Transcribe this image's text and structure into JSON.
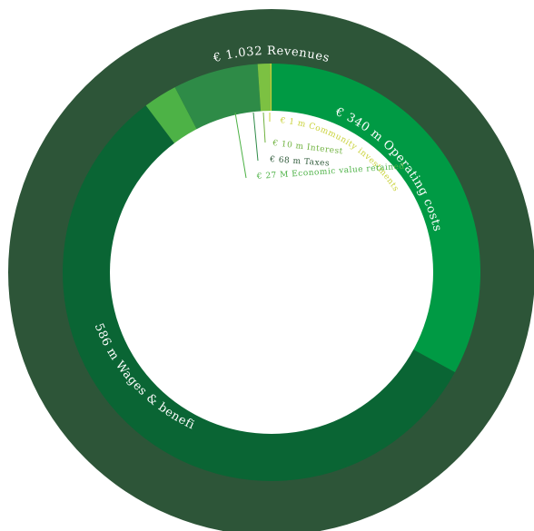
{
  "chart_data": {
    "type": "pie",
    "title": "",
    "total": {
      "label": "€ 1.032 Revenues",
      "value": 1032,
      "unit": "€ m"
    },
    "segments": [
      {
        "key": "operating",
        "label": "€ 340 m Operating costs",
        "value": 340,
        "color": "#009a44"
      },
      {
        "key": "wages",
        "label": "€ 586 m Wages & benefits",
        "value": 586,
        "color": "#0a6534"
      },
      {
        "key": "retained",
        "label": "€ 27 M Economic value retained",
        "value": 27,
        "color": "#4db246"
      },
      {
        "key": "taxes",
        "label": "€ 68 m Taxes",
        "value": 68,
        "color": "#2e8b47"
      },
      {
        "key": "interest",
        "label": "€ 10 m Interest",
        "value": 10,
        "color": "#7cc142"
      },
      {
        "key": "community",
        "label": "€ 1 m Community investments",
        "value": 1,
        "color": "#c9d23a"
      }
    ],
    "colors": {
      "outer_ring": "#2d5538",
      "center": "#ffffff",
      "label_community": "#c9d23a",
      "label_interest": "#6fb23e",
      "label_taxes": "#2f5a3a",
      "label_retained": "#4db246"
    }
  }
}
